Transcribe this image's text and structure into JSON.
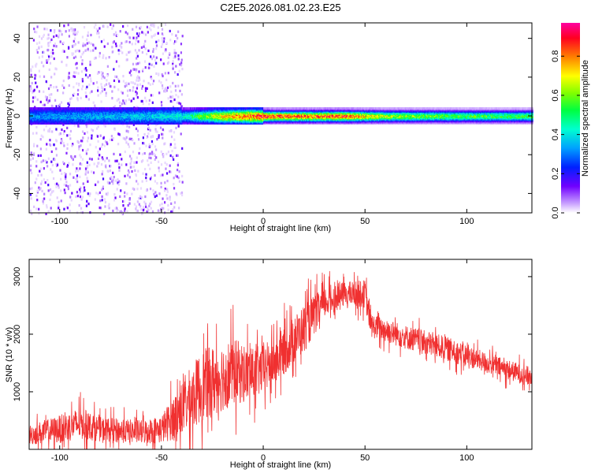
{
  "title": "C2E5.2026.081.02.23.E25",
  "colors": {
    "snr_line": "#f03030",
    "axis": "#000000",
    "grid": "#d0d0d0"
  },
  "chart_data": [
    {
      "type": "heatmap",
      "name": "spectrogram",
      "xlabel": "Height of straight line (km)",
      "ylabel": "Frequency (Hz)",
      "xlim": [
        -115,
        132
      ],
      "ylim": [
        -50,
        48
      ],
      "xticks": [
        -100,
        -50,
        0,
        50,
        100
      ],
      "yticks": [
        -40,
        -20,
        0,
        20,
        40
      ],
      "xtick_labels": [
        "-100",
        "-50",
        "0",
        "50",
        "100"
      ],
      "ytick_labels": [
        "-40",
        "-20",
        "0",
        "20",
        "40"
      ],
      "colorbar": {
        "label": "Normalized spectral amplitude",
        "range": [
          0,
          0.97
        ],
        "ticks": [
          0,
          0.2,
          0.4,
          0.6,
          0.8
        ],
        "tick_labels": [
          "0.0",
          "0.2",
          "0.4",
          "0.6",
          "0.8"
        ]
      },
      "ridge": {
        "center_hz": 0,
        "noise_region_end_km": -40,
        "amplitude_profile": [
          {
            "x": -115,
            "a": 0.35
          },
          {
            "x": -60,
            "a": 0.4
          },
          {
            "x": -40,
            "a": 0.45
          },
          {
            "x": -20,
            "a": 0.8
          },
          {
            "x": 0,
            "a": 0.95
          },
          {
            "x": 10,
            "a": 0.9
          },
          {
            "x": 40,
            "a": 0.92
          },
          {
            "x": 60,
            "a": 0.7
          },
          {
            "x": 100,
            "a": 0.6
          },
          {
            "x": 132,
            "a": 0.6
          }
        ]
      }
    },
    {
      "type": "line",
      "name": "snr",
      "xlabel": "Height of straight line (km)",
      "ylabel": "SNR (10 * v/v)",
      "xlim": [
        -115,
        132
      ],
      "ylim": [
        0,
        3300
      ],
      "xticks": [
        -100,
        -50,
        0,
        50,
        100
      ],
      "yticks": [
        1000,
        2000,
        3000
      ],
      "xtick_labels": [
        "-100",
        "-50",
        "0",
        "50",
        "100"
      ],
      "ytick_labels": [
        "1000",
        "2000",
        "3000"
      ],
      "series": [
        {
          "name": "SNR",
          "envelope": [
            {
              "x": -115,
              "mean": 250,
              "spread": 250
            },
            {
              "x": -100,
              "mean": 350,
              "spread": 350
            },
            {
              "x": -90,
              "mean": 450,
              "spread": 400
            },
            {
              "x": -80,
              "mean": 350,
              "spread": 300
            },
            {
              "x": -60,
              "mean": 300,
              "spread": 300
            },
            {
              "x": -50,
              "mean": 350,
              "spread": 350
            },
            {
              "x": -40,
              "mean": 700,
              "spread": 700
            },
            {
              "x": -30,
              "mean": 1100,
              "spread": 900
            },
            {
              "x": -15,
              "mean": 1350,
              "spread": 850
            },
            {
              "x": -5,
              "mean": 1300,
              "spread": 650
            },
            {
              "x": 5,
              "mean": 1500,
              "spread": 600
            },
            {
              "x": 20,
              "mean": 2100,
              "spread": 600
            },
            {
              "x": 30,
              "mean": 2550,
              "spread": 400
            },
            {
              "x": 40,
              "mean": 2700,
              "spread": 300
            },
            {
              "x": 50,
              "mean": 2700,
              "spread": 350
            },
            {
              "x": 53,
              "mean": 2150,
              "spread": 300
            },
            {
              "x": 70,
              "mean": 1950,
              "spread": 300
            },
            {
              "x": 90,
              "mean": 1750,
              "spread": 300
            },
            {
              "x": 110,
              "mean": 1500,
              "spread": 250
            },
            {
              "x": 132,
              "mean": 1250,
              "spread": 250
            }
          ]
        }
      ]
    }
  ]
}
